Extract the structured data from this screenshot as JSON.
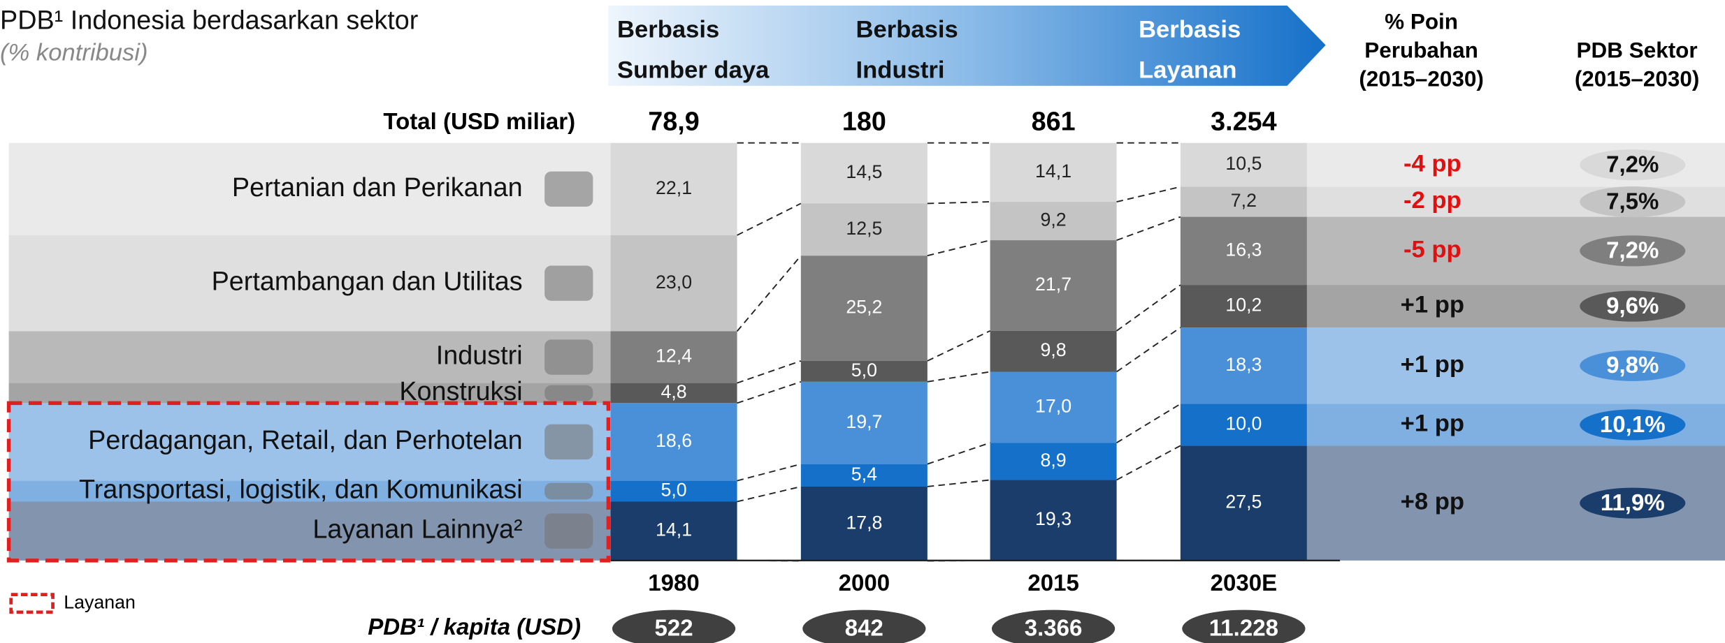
{
  "chart_data": {
    "type": "stacked_bar",
    "title": "PDB¹ Indonesia berdasarkan sektor",
    "subtitle": "(% kontribusi)",
    "phases": [
      [
        "Berbasis",
        "Sumber daya"
      ],
      [
        "Berbasis",
        "Industri"
      ],
      [
        "Berbasis",
        "Layanan"
      ]
    ],
    "totals_label": "Total (USD miliar)",
    "totals": {
      "values": [
        78.9,
        180,
        861,
        3254
      ],
      "value_labels": [
        "78,9",
        "180",
        "861",
        "3.254"
      ]
    },
    "categories": [
      "1980",
      "2000",
      "2015",
      "2030E"
    ],
    "ylim": [
      0,
      100
    ],
    "series": [
      {
        "name": "Pertanian dan Perikanan",
        "color": "#d9d9d9",
        "values": [
          22.1,
          14.5,
          14.1,
          10.5
        ],
        "value_labels": [
          "22,1",
          "14,5",
          "14,1",
          "10,5"
        ]
      },
      {
        "name": "Pertambangan dan Utilitas",
        "color": "#c4c4c4",
        "values": [
          23.0,
          12.5,
          9.2,
          7.2
        ],
        "value_labels": [
          "23,0",
          "12,5",
          "9,2",
          "7,2"
        ]
      },
      {
        "name": "Industri",
        "color": "#7f7f7f",
        "values": [
          12.4,
          25.2,
          21.7,
          16.3
        ],
        "value_labels": [
          "12,4",
          "25,2",
          "21,7",
          "16,3"
        ]
      },
      {
        "name": "Konstruksi",
        "color": "#595959",
        "values": [
          4.8,
          5.0,
          9.8,
          10.2
        ],
        "value_labels": [
          "4,8",
          "5,0",
          "9,8",
          "10,2"
        ]
      },
      {
        "name": "Perdagangan, Retail, dan Perhotelan",
        "color": "#4a90d9",
        "values": [
          18.6,
          19.7,
          17.0,
          18.3
        ],
        "value_labels": [
          "18,6",
          "19,7",
          "17,0",
          "18,3"
        ]
      },
      {
        "name": "Transportasi, logistik, dan Komunikasi",
        "color": "#1570c9",
        "values": [
          5.0,
          5.4,
          8.9,
          10.0
        ],
        "value_labels": [
          "5,0",
          "5,4",
          "8,9",
          "10,0"
        ]
      },
      {
        "name": "Layanan Lainnya²",
        "color": "#1b3d6b",
        "values": [
          14.1,
          17.8,
          19.3,
          27.5
        ],
        "value_labels": [
          "14,1",
          "17,8",
          "19,3",
          "27,5"
        ]
      }
    ],
    "change_header": [
      "% Poin",
      "Perubahan",
      "(2015–2030)"
    ],
    "change_pp": {
      "values": [
        -4,
        -2,
        -5,
        1,
        1,
        1,
        8
      ],
      "value_labels": [
        "-4 pp",
        "-2 pp",
        "-5 pp",
        "+1 pp",
        "+1 pp",
        "+1 pp",
        "+8 pp"
      ]
    },
    "growth_header": [
      "PDB Sektor",
      "(2015–2030)"
    ],
    "growth": {
      "values": [
        7.2,
        7.5,
        7.2,
        9.6,
        9.8,
        10.1,
        11.9
      ],
      "value_labels": [
        "7,2%",
        "7,5%",
        "7,2%",
        "9,6%",
        "9,8%",
        "10,1%",
        "11,9%"
      ]
    },
    "per_capita_label": "PDB¹ / kapita (USD)",
    "per_capita": {
      "values": [
        522,
        842,
        3366,
        11228
      ],
      "value_labels": [
        "522",
        "842",
        "3.366",
        "11.228"
      ]
    },
    "legend": {
      "label": "Layanan",
      "series": [
        4,
        5,
        6
      ]
    }
  }
}
